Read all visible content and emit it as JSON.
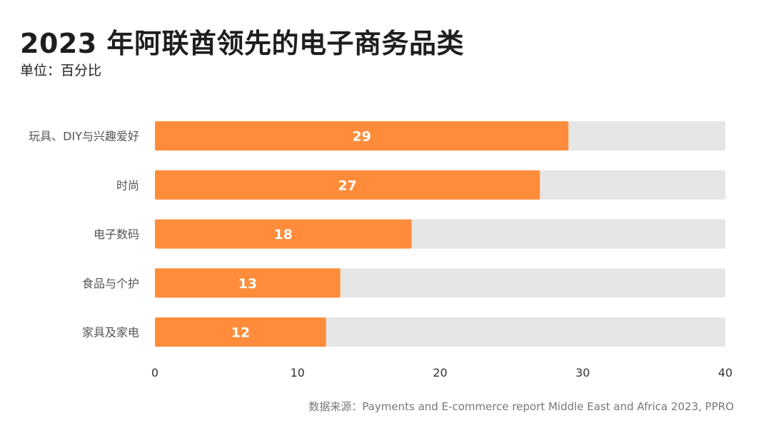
{
  "chart_data": {
    "type": "bar",
    "orientation": "horizontal",
    "title": "2023 年阿联酋领先的电子商务品类",
    "subtitle": "单位：百分比",
    "categories": [
      "玩具、DIY与兴趣爱好",
      "时尚",
      "电子数码",
      "食品与个护",
      "家具及家电"
    ],
    "values": [
      29,
      27,
      18,
      13,
      12
    ],
    "xlim": [
      0,
      40
    ],
    "xticks": [
      0,
      10,
      20,
      30,
      40
    ],
    "grid": false,
    "legend": "none",
    "colors": {
      "bar": "#ff8c3a",
      "track": "#e6e6e6",
      "label_inside": "#ffffff"
    }
  },
  "source": "数据来源：Payments and E-commerce report Middle East and Africa 2023, PPRO"
}
